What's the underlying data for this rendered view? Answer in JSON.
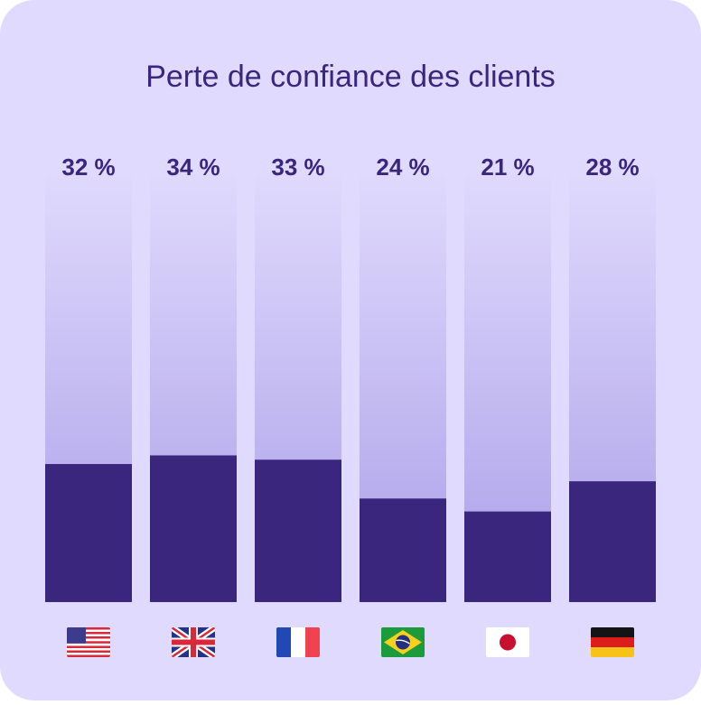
{
  "chart_data": {
    "type": "bar",
    "title": "Perte de confiance des clients",
    "categories": [
      null,
      null,
      null,
      null,
      null,
      null
    ],
    "values": [
      32,
      34,
      33,
      24,
      21,
      28
    ],
    "value_labels": [
      "32 %",
      "34 %",
      "33 %",
      "24 %",
      "21 %",
      "28 %"
    ],
    "color": "#3a267c",
    "ylim": [
      0,
      100
    ]
  }
}
